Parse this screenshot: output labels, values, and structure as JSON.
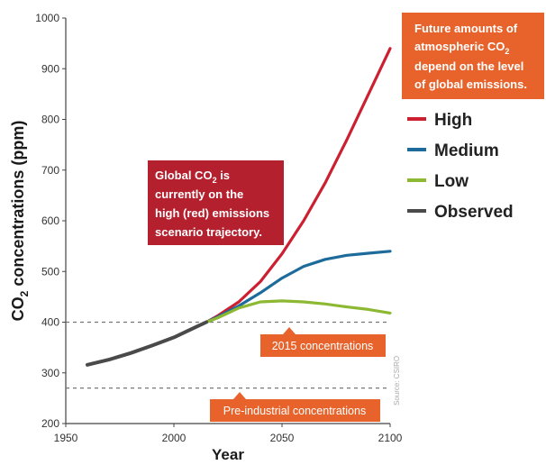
{
  "chart_data": {
    "type": "line",
    "xlabel": "Year",
    "ylabel_main": "CO",
    "ylabel_sub": "2",
    "ylabel_rest": " concentrations (ppm)",
    "xlim": [
      1950,
      2100
    ],
    "ylim": [
      200,
      1000
    ],
    "x_ticks": [
      1950,
      2000,
      2050,
      2100
    ],
    "y_ticks": [
      200,
      300,
      400,
      500,
      600,
      700,
      800,
      900,
      1000
    ],
    "grid": false,
    "series": [
      {
        "name": "Observed",
        "color": "#4a4a4a",
        "x": [
          1960,
          1970,
          1980,
          1990,
          2000,
          2010,
          2015
        ],
        "y": [
          316,
          326,
          339,
          354,
          370,
          390,
          400
        ]
      },
      {
        "name": "High",
        "color": "#cc2031",
        "x": [
          2015,
          2020,
          2030,
          2040,
          2050,
          2060,
          2070,
          2080,
          2090,
          2100
        ],
        "y": [
          400,
          412,
          440,
          480,
          535,
          600,
          675,
          760,
          850,
          940
        ]
      },
      {
        "name": "Medium",
        "color": "#1d6b9a",
        "x": [
          2015,
          2020,
          2030,
          2040,
          2050,
          2060,
          2070,
          2080,
          2090,
          2100
        ],
        "y": [
          400,
          410,
          432,
          458,
          487,
          510,
          524,
          532,
          536,
          540
        ]
      },
      {
        "name": "Low",
        "color": "#8cb832",
        "x": [
          2015,
          2020,
          2030,
          2040,
          2050,
          2060,
          2070,
          2080,
          2090,
          2100
        ],
        "y": [
          400,
          408,
          428,
          440,
          442,
          440,
          436,
          430,
          425,
          418
        ]
      }
    ],
    "reference_lines": [
      {
        "label": "2015 concentrations",
        "y": 400
      },
      {
        "label": "Pre-industrial concentrations",
        "y": 270
      }
    ],
    "legend_position": "right",
    "annotations": {
      "top_box": {
        "line1": "Future amounts of",
        "line2_main": "atmospheric CO",
        "line2_sub": "2",
        "line3": "depend on the level",
        "line4": "of global emissions."
      },
      "mid_box": {
        "line1_main": "Global CO",
        "line1_sub": "2",
        "line1_rest": " is",
        "line2": "currently on the",
        "line3": "high (red) emissions",
        "line4": "scenario trajectory."
      },
      "source": "Source: CSIRO"
    },
    "colors": {
      "orange": "#e8632b",
      "crimson": "#b5202e",
      "axis": "#444444",
      "dashed": "#777777"
    }
  }
}
